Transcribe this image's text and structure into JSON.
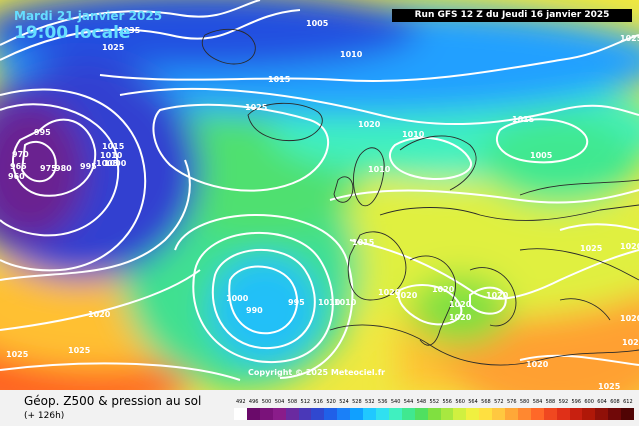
{
  "header": {
    "date_line": "Mardi 21 janvier 2025",
    "time_line": "19:00 locale",
    "run_line": "Run GFS 12 Z du Jeudi 16 janvier 2025"
  },
  "footer": {
    "title": "Géop. Z500 & pression au sol",
    "forecast": "(+ 126h)",
    "copyright": "Copyright © 2025 Meteociel.fr"
  },
  "legend": {
    "ticks": [
      "492",
      "496",
      "500",
      "504",
      "508",
      "512",
      "516",
      "520",
      "524",
      "528",
      "532",
      "536",
      "540",
      "544",
      "548",
      "552",
      "556",
      "560",
      "564",
      "568",
      "572",
      "576",
      "580",
      "584",
      "588",
      "592",
      "596",
      "600",
      "604",
      "608",
      "612"
    ],
    "colors": [
      "#ffffff",
      "#6a0a6a",
      "#7a127a",
      "#8a1c8a",
      "#6a2aa0",
      "#4a38b8",
      "#3048d0",
      "#2060e8",
      "#1a80f8",
      "#10a0ff",
      "#20c8ff",
      "#30e0f0",
      "#40f0c0",
      "#40e890",
      "#50e060",
      "#80e040",
      "#a8e840",
      "#d0f040",
      "#f0f040",
      "#ffe040",
      "#ffc840",
      "#ffa838",
      "#ff8830",
      "#ff6828",
      "#f04820",
      "#e03018",
      "#c82010",
      "#b01808",
      "#901008",
      "#700808",
      "#500404"
    ]
  },
  "isobar_labels": [
    {
      "text": "1035"
    },
    {
      "text": "1025"
    },
    {
      "text": "1005"
    },
    {
      "text": "1010"
    },
    {
      "text": "1015"
    },
    {
      "text": "1025"
    },
    {
      "text": "1020"
    },
    {
      "text": "1010"
    },
    {
      "text": "1010"
    },
    {
      "text": "1015"
    },
    {
      "text": "1005"
    },
    {
      "text": "995"
    },
    {
      "text": "970"
    },
    {
      "text": "965"
    },
    {
      "text": "960"
    },
    {
      "text": "975"
    },
    {
      "text": "980"
    },
    {
      "text": "995"
    },
    {
      "text": "1015"
    },
    {
      "text": "1010"
    },
    {
      "text": "1005"
    },
    {
      "text": "1000"
    },
    {
      "text": "1015"
    },
    {
      "text": "1025"
    },
    {
      "text": "1000"
    },
    {
      "text": "990"
    },
    {
      "text": "995"
    },
    {
      "text": "1010"
    },
    {
      "text": "1010"
    },
    {
      "text": "1020"
    },
    {
      "text": "1020"
    },
    {
      "text": "1020"
    },
    {
      "text": "1020"
    },
    {
      "text": "1020"
    },
    {
      "text": "1020"
    },
    {
      "text": "1020"
    },
    {
      "text": "1025"
    },
    {
      "text": "1020"
    },
    {
      "text": "1025"
    },
    {
      "text": "1025"
    },
    {
      "text": "1020"
    },
    {
      "text": "1020"
    },
    {
      "text": "1020"
    },
    {
      "text": "1025"
    }
  ]
}
